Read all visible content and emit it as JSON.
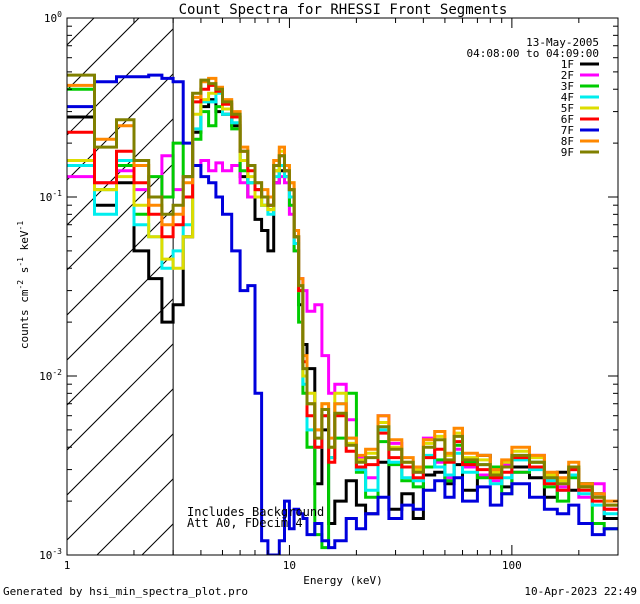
{
  "chart_data": {
    "type": "line",
    "title": "Count Spectra for RHESSI Front Segments",
    "xlabel": "Energy (keV)",
    "ylabel": {
      "base": "counts cm",
      "exp1": "-2",
      "mid": " s",
      "exp2": "-1",
      "unit": " keV",
      "exp3": "-1"
    },
    "xscale": "log",
    "yscale": "log",
    "xlim": [
      1,
      300
    ],
    "ylim": [
      0.001,
      1
    ],
    "xticks": [
      {
        "value": 1,
        "label": "1"
      },
      {
        "value": 10,
        "label": "10"
      },
      {
        "value": 100,
        "label": "100"
      }
    ],
    "yticks": [
      {
        "value": 1,
        "base": "10",
        "exp": "0"
      },
      {
        "value": 0.1,
        "base": "10",
        "exp": "-1"
      },
      {
        "value": 0.01,
        "base": "10",
        "exp": "-2"
      },
      {
        "value": 0.001,
        "base": "10",
        "exp": "-3"
      }
    ],
    "hatched_region_max_keV": 3,
    "date": "13-May-2005",
    "time_range": "04:08:00 to 04:09:00",
    "annotations": [
      "Includes Background",
      "Att A0, FDecim 4"
    ],
    "footer_left": "Generated by hsi_min_spectra_plot.pro",
    "footer_right": "10-Apr-2023 22:49",
    "energy_bins": [
      1.0,
      1.33,
      1.67,
      2.0,
      2.33,
      2.67,
      3.0,
      3.33,
      3.67,
      4.0,
      4.33,
      4.67,
      5.0,
      5.5,
      6.0,
      6.5,
      7.0,
      7.5,
      8.0,
      8.5,
      9.0,
      9.5,
      10.0,
      10.5,
      11.0,
      11.5,
      12.0,
      13.0,
      14.0,
      15.0,
      16.0,
      18.0,
      20.0,
      22.0,
      25.0,
      28.0,
      32.0,
      36.0,
      40.0,
      45.0,
      50.0,
      55.0,
      60.0,
      70.0,
      80.0,
      90.0,
      100.0,
      120.0,
      140.0,
      160.0,
      180.0,
      200.0,
      230.0,
      260.0,
      300.0
    ],
    "series": [
      {
        "name": "1F",
        "color": "#000000",
        "values": [
          0.28,
          0.09,
          0.12,
          0.05,
          0.035,
          0.02,
          0.025,
          0.06,
          0.23,
          0.32,
          0.35,
          0.3,
          0.29,
          0.25,
          0.13,
          0.1,
          0.075,
          0.065,
          0.05,
          0.12,
          0.14,
          0.13,
          0.11,
          0.06,
          0.025,
          0.015,
          0.011,
          0.0025,
          0.005,
          0.0015,
          0.002,
          0.0026,
          0.0019,
          0.0017,
          0.0033,
          0.0018,
          0.0022,
          0.0016,
          0.0028,
          0.0029,
          0.0025,
          0.0032,
          0.0023,
          0.0036,
          0.0028,
          0.0024,
          0.0031,
          0.0027,
          0.0021,
          0.0029,
          0.0023,
          0.0025,
          0.0022,
          0.0016
        ]
      },
      {
        "name": "2F",
        "color": "#ff00ff",
        "values": [
          0.13,
          0.12,
          0.14,
          0.11,
          0.1,
          0.17,
          0.11,
          0.13,
          0.15,
          0.16,
          0.14,
          0.155,
          0.14,
          0.15,
          0.12,
          0.1,
          0.11,
          0.1,
          0.09,
          0.12,
          0.13,
          0.12,
          0.08,
          0.05,
          0.035,
          0.03,
          0.023,
          0.025,
          0.013,
          0.008,
          0.009,
          0.0057,
          0.0035,
          0.0027,
          0.006,
          0.0042,
          0.0031,
          0.0029,
          0.0045,
          0.0033,
          0.0027,
          0.0039,
          0.0031,
          0.0028,
          0.0026,
          0.0032,
          0.0029,
          0.0036,
          0.0027,
          0.0024,
          0.003,
          0.0021,
          0.0025,
          0.0018
        ]
      },
      {
        "name": "3F",
        "color": "#00cc00",
        "values": [
          0.4,
          0.11,
          0.15,
          0.08,
          0.13,
          0.1,
          0.2,
          0.13,
          0.21,
          0.3,
          0.25,
          0.32,
          0.31,
          0.24,
          0.14,
          0.12,
          0.11,
          0.09,
          0.085,
          0.14,
          0.15,
          0.14,
          0.09,
          0.05,
          0.02,
          0.008,
          0.004,
          0.0013,
          0.0011,
          0.0035,
          0.0045,
          0.008,
          0.0029,
          0.0021,
          0.0043,
          0.0032,
          0.0026,
          0.0024,
          0.0031,
          0.0034,
          0.0026,
          0.0041,
          0.0033,
          0.0027,
          0.0031,
          0.0022,
          0.0029,
          0.0033,
          0.0024,
          0.002,
          0.0027,
          0.0025,
          0.0015,
          0.0014
        ]
      },
      {
        "name": "4F",
        "color": "#00eeee",
        "values": [
          0.15,
          0.08,
          0.16,
          0.07,
          0.06,
          0.04,
          0.05,
          0.07,
          0.24,
          0.34,
          0.34,
          0.38,
          0.29,
          0.26,
          0.16,
          0.12,
          0.1,
          0.09,
          0.08,
          0.13,
          0.15,
          0.13,
          0.1,
          0.055,
          0.03,
          0.009,
          0.005,
          0.004,
          0.006,
          0.0035,
          0.007,
          0.0045,
          0.003,
          0.0023,
          0.005,
          0.0033,
          0.0027,
          0.0026,
          0.0036,
          0.0031,
          0.0028,
          0.0037,
          0.0029,
          0.0032,
          0.0025,
          0.0027,
          0.0034,
          0.003,
          0.0026,
          0.0023,
          0.0028,
          0.0022,
          0.0019,
          0.0017
        ]
      },
      {
        "name": "5F",
        "color": "#dddd00",
        "values": [
          0.16,
          0.11,
          0.13,
          0.09,
          0.06,
          0.045,
          0.04,
          0.06,
          0.29,
          0.35,
          0.38,
          0.4,
          0.31,
          0.28,
          0.16,
          0.13,
          0.1,
          0.09,
          0.085,
          0.14,
          0.18,
          0.15,
          0.12,
          0.06,
          0.03,
          0.01,
          0.008,
          0.005,
          0.007,
          0.004,
          0.008,
          0.0042,
          0.0034,
          0.0037,
          0.0055,
          0.004,
          0.0033,
          0.003,
          0.0042,
          0.0046,
          0.0036,
          0.0048,
          0.0035,
          0.0034,
          0.0029,
          0.0033,
          0.0038,
          0.0035,
          0.0028,
          0.0026,
          0.0031,
          0.0024,
          0.0021,
          0.0019
        ]
      },
      {
        "name": "6F",
        "color": "#ff0000",
        "values": [
          0.23,
          0.12,
          0.18,
          0.12,
          0.08,
          0.06,
          0.07,
          0.1,
          0.34,
          0.4,
          0.42,
          0.39,
          0.33,
          0.28,
          0.18,
          0.14,
          0.11,
          0.1,
          0.09,
          0.15,
          0.17,
          0.14,
          0.11,
          0.06,
          0.03,
          0.012,
          0.006,
          0.004,
          0.006,
          0.0033,
          0.006,
          0.0038,
          0.0031,
          0.0032,
          0.0048,
          0.0035,
          0.0031,
          0.0027,
          0.0035,
          0.0039,
          0.0033,
          0.0043,
          0.0032,
          0.003,
          0.0027,
          0.0029,
          0.0035,
          0.0031,
          0.0025,
          0.0023,
          0.003,
          0.0023,
          0.002,
          0.0018
        ]
      },
      {
        "name": "7F",
        "color": "#0000dd",
        "values": [
          0.32,
          0.44,
          0.47,
          0.47,
          0.48,
          0.46,
          0.44,
          0.2,
          0.15,
          0.13,
          0.12,
          0.1,
          0.08,
          0.05,
          0.03,
          0.032,
          0.008,
          0.0012,
          0.001,
          0.001,
          0.0012,
          0.002,
          0.0014,
          0.0018,
          0.0017,
          0.0016,
          0.0013,
          0.0015,
          0.0012,
          0.0011,
          0.0012,
          0.0016,
          0.0014,
          0.0017,
          0.0021,
          0.0016,
          0.0019,
          0.0018,
          0.0023,
          0.0026,
          0.0021,
          0.0027,
          0.002,
          0.0024,
          0.0019,
          0.0022,
          0.0025,
          0.0021,
          0.0018,
          0.0017,
          0.0019,
          0.0015,
          0.0013,
          0.0014
        ]
      },
      {
        "name": "8F",
        "color": "#ff8800",
        "values": [
          0.42,
          0.21,
          0.25,
          0.15,
          0.09,
          0.07,
          0.08,
          0.12,
          0.36,
          0.44,
          0.46,
          0.41,
          0.35,
          0.3,
          0.19,
          0.15,
          0.12,
          0.11,
          0.1,
          0.16,
          0.19,
          0.15,
          0.12,
          0.065,
          0.035,
          0.013,
          0.007,
          0.005,
          0.007,
          0.0045,
          0.007,
          0.0045,
          0.0036,
          0.0039,
          0.006,
          0.0044,
          0.0035,
          0.0031,
          0.0044,
          0.0049,
          0.0037,
          0.0051,
          0.0037,
          0.0036,
          0.003,
          0.0034,
          0.004,
          0.0036,
          0.0029,
          0.0027,
          0.0033,
          0.0025,
          0.0022,
          0.002
        ]
      },
      {
        "name": "9F",
        "color": "#808000",
        "values": [
          0.48,
          0.19,
          0.27,
          0.16,
          0.1,
          0.08,
          0.09,
          0.13,
          0.38,
          0.45,
          0.43,
          0.4,
          0.34,
          0.29,
          0.18,
          0.15,
          0.12,
          0.1,
          0.09,
          0.15,
          0.17,
          0.14,
          0.11,
          0.06,
          0.032,
          0.011,
          0.007,
          0.0045,
          0.0065,
          0.004,
          0.0062,
          0.0041,
          0.0033,
          0.0035,
          0.0052,
          0.0039,
          0.0033,
          0.0029,
          0.004,
          0.0044,
          0.0034,
          0.0046,
          0.0034,
          0.0032,
          0.0028,
          0.0031,
          0.0036,
          0.0033,
          0.0027,
          0.0025,
          0.0031,
          0.0024,
          0.0021,
          0.0019
        ]
      }
    ]
  }
}
